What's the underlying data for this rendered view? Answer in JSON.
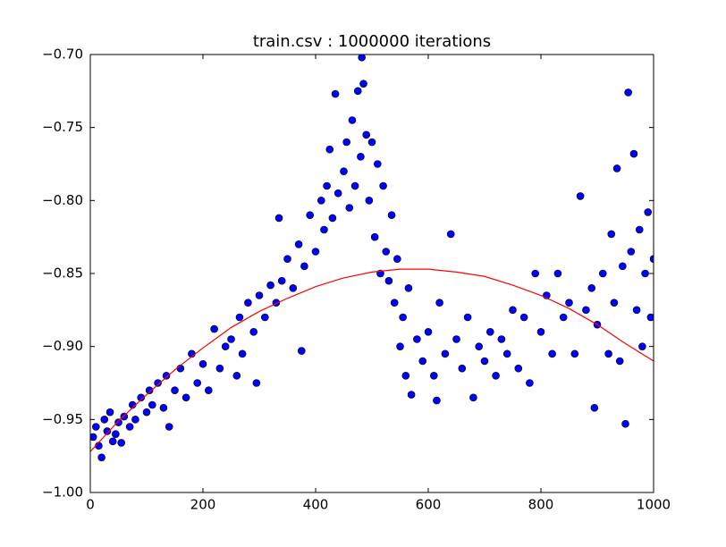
{
  "chart_data": {
    "type": "scatter",
    "title": "train.csv : 1000000 iterations",
    "xlim": [
      0,
      1000
    ],
    "xticks": [
      0,
      200,
      400,
      600,
      800,
      1000
    ],
    "ylim": [
      -1.0,
      -0.7
    ],
    "yticks": [
      {
        "value": -1.0,
        "label": "−1.00"
      },
      {
        "value": -0.95,
        "label": "−0.95"
      },
      {
        "value": -0.9,
        "label": "−0.90"
      },
      {
        "value": -0.85,
        "label": "−0.85"
      },
      {
        "value": -0.8,
        "label": "−0.80"
      },
      {
        "value": -0.75,
        "label": "−0.75"
      },
      {
        "value": -0.7,
        "label": "−0.70"
      }
    ],
    "grid": false,
    "series": [
      {
        "type": "scatter",
        "color": "#0000ff",
        "x": [
          5,
          10,
          15,
          20,
          25,
          30,
          35,
          40,
          45,
          50,
          55,
          60,
          70,
          75,
          80,
          90,
          100,
          105,
          110,
          120,
          130,
          135,
          140,
          150,
          160,
          170,
          180,
          190,
          200,
          210,
          220,
          230,
          240,
          250,
          260,
          265,
          270,
          280,
          290,
          295,
          300,
          310,
          320,
          330,
          335,
          340,
          350,
          360,
          370,
          375,
          380,
          390,
          400,
          410,
          415,
          420,
          425,
          430,
          435,
          440,
          450,
          455,
          460,
          465,
          470,
          475,
          480,
          482,
          485,
          490,
          495,
          500,
          505,
          510,
          515,
          520,
          525,
          530,
          535,
          540,
          545,
          550,
          555,
          560,
          565,
          570,
          580,
          590,
          600,
          610,
          615,
          620,
          630,
          640,
          650,
          660,
          670,
          680,
          690,
          700,
          710,
          720,
          730,
          740,
          750,
          760,
          770,
          780,
          790,
          800,
          810,
          820,
          830,
          840,
          850,
          860,
          870,
          880,
          890,
          895,
          900,
          910,
          920,
          925,
          930,
          935,
          940,
          945,
          950,
          955,
          960,
          965,
          970,
          975,
          980,
          985,
          990,
          995,
          1000
        ],
        "values": [
          -0.962,
          -0.955,
          -0.968,
          -0.976,
          -0.95,
          -0.958,
          -0.945,
          -0.965,
          -0.96,
          -0.952,
          -0.966,
          -0.948,
          -0.955,
          -0.94,
          -0.95,
          -0.935,
          -0.945,
          -0.93,
          -0.94,
          -0.925,
          -0.942,
          -0.92,
          -0.955,
          -0.93,
          -0.915,
          -0.935,
          -0.905,
          -0.925,
          -0.912,
          -0.93,
          -0.888,
          -0.915,
          -0.9,
          -0.895,
          -0.92,
          -0.88,
          -0.905,
          -0.87,
          -0.89,
          -0.925,
          -0.865,
          -0.88,
          -0.858,
          -0.87,
          -0.812,
          -0.855,
          -0.84,
          -0.86,
          -0.83,
          -0.903,
          -0.845,
          -0.81,
          -0.835,
          -0.8,
          -0.82,
          -0.79,
          -0.765,
          -0.812,
          -0.727,
          -0.795,
          -0.78,
          -0.76,
          -0.805,
          -0.745,
          -0.79,
          -0.725,
          -0.77,
          -0.702,
          -0.72,
          -0.755,
          -0.8,
          -0.76,
          -0.825,
          -0.775,
          -0.85,
          -0.79,
          -0.835,
          -0.855,
          -0.81,
          -0.87,
          -0.84,
          -0.9,
          -0.88,
          -0.92,
          -0.86,
          -0.933,
          -0.895,
          -0.91,
          -0.89,
          -0.92,
          -0.937,
          -0.87,
          -0.905,
          -0.823,
          -0.895,
          -0.915,
          -0.88,
          -0.935,
          -0.9,
          -0.91,
          -0.89,
          -0.92,
          -0.895,
          -0.905,
          -0.875,
          -0.915,
          -0.88,
          -0.925,
          -0.85,
          -0.89,
          -0.865,
          -0.905,
          -0.85,
          -0.88,
          -0.87,
          -0.905,
          -0.797,
          -0.875,
          -0.86,
          -0.942,
          -0.885,
          -0.85,
          -0.905,
          -0.823,
          -0.87,
          -0.778,
          -0.91,
          -0.845,
          -0.953,
          -0.726,
          -0.835,
          -0.768,
          -0.875,
          -0.82,
          -0.9,
          -0.85,
          -0.808,
          -0.88,
          -0.84
        ]
      },
      {
        "type": "line",
        "color": "#ff0000",
        "x": [
          0,
          50,
          100,
          150,
          200,
          250,
          300,
          350,
          400,
          450,
          500,
          550,
          600,
          650,
          700,
          750,
          800,
          850,
          900,
          950,
          1000
        ],
        "values": [
          -0.972,
          -0.951,
          -0.933,
          -0.916,
          -0.901,
          -0.887,
          -0.876,
          -0.867,
          -0.859,
          -0.853,
          -0.849,
          -0.847,
          -0.847,
          -0.849,
          -0.852,
          -0.858,
          -0.865,
          -0.874,
          -0.885,
          -0.898,
          -0.91
        ]
      }
    ]
  }
}
